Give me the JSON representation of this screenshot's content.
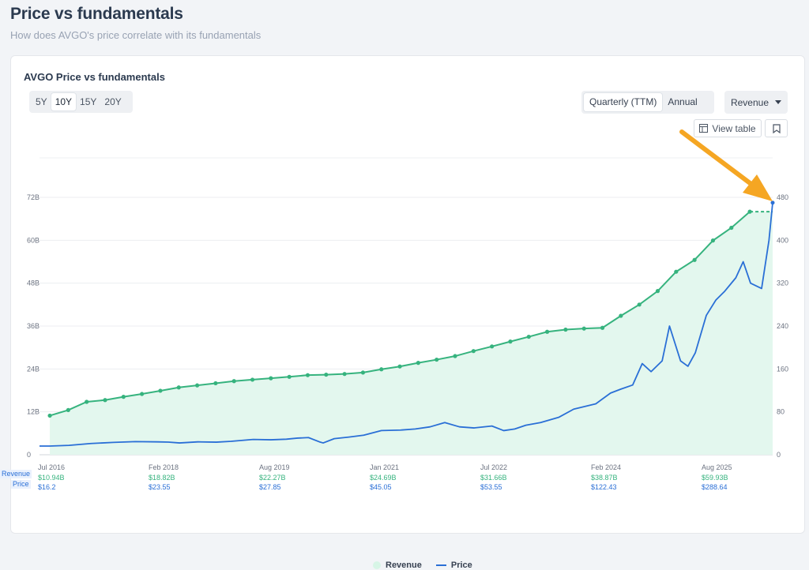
{
  "header": {
    "title": "Price vs fundamentals",
    "subtitle": "How does AVGO's price correlate with its fundamentals"
  },
  "card": {
    "title": "AVGO Price vs fundamentals",
    "ranges": [
      "5Y",
      "10Y",
      "15Y",
      "20Y"
    ],
    "active_range": "10Y",
    "periods": [
      "Quarterly (TTM)",
      "Annual"
    ],
    "active_period": "Quarterly (TTM)",
    "metric": "Revenue",
    "view_table_label": "View table"
  },
  "row_labels": {
    "revenue": "Revenue",
    "price": "Price"
  },
  "colors": {
    "revenue": "#36b37e",
    "revenue_fill": "#e3f7ee",
    "price": "#2a6fd6",
    "arrow": "#f5a623"
  },
  "icons": {
    "table": "table-icon",
    "bookmark": "bookmark-icon",
    "dropdown": "chevron-down-icon",
    "annotation": "arrow-annotation"
  },
  "chart_data": {
    "type": "line",
    "left_axis": {
      "ticks": [
        "0",
        "12B",
        "24B",
        "36B",
        "48B",
        "60B",
        "72B"
      ],
      "range": [
        0,
        72
      ]
    },
    "right_axis": {
      "ticks": [
        "0",
        "80",
        "160",
        "240",
        "320",
        "400",
        "480"
      ],
      "range": [
        0,
        480
      ]
    },
    "x_labels": [
      "Jul 2016",
      "Feb 2018",
      "Aug 2019",
      "Jan 2021",
      "Jul 2022",
      "Feb 2024",
      "Aug 2025"
    ],
    "x_label_values": {
      "revenue": [
        "$10.94B",
        "$18.82B",
        "$22.27B",
        "$24.69B",
        "$31.66B",
        "$38.87B",
        "$59.93B"
      ],
      "price": [
        "$16.2",
        "$23.55",
        "$27.85",
        "$45.05",
        "$53.55",
        "$122.43",
        "$288.64"
      ]
    },
    "x_range": [
      2016.4,
      2026.35
    ],
    "series": [
      {
        "name": "Revenue",
        "x": [
          2016.54,
          2016.79,
          2017.04,
          2017.29,
          2017.54,
          2017.79,
          2018.04,
          2018.29,
          2018.54,
          2018.79,
          2019.04,
          2019.29,
          2019.54,
          2019.79,
          2020.04,
          2020.29,
          2020.54,
          2020.79,
          2021.04,
          2021.29,
          2021.54,
          2021.79,
          2022.04,
          2022.29,
          2022.54,
          2022.79,
          2023.04,
          2023.29,
          2023.54,
          2023.79,
          2024.04,
          2024.29,
          2024.54,
          2024.79,
          2025.04,
          2025.29,
          2025.54,
          2025.79,
          2026.04
        ],
        "values": [
          10.94,
          12.5,
          14.8,
          15.3,
          16.2,
          17.0,
          17.9,
          18.82,
          19.4,
          20.0,
          20.6,
          21.0,
          21.4,
          21.8,
          22.27,
          22.4,
          22.6,
          23.0,
          23.9,
          24.69,
          25.7,
          26.6,
          27.6,
          29.0,
          30.3,
          31.66,
          33.0,
          34.4,
          35.0,
          35.3,
          35.5,
          38.87,
          42.0,
          45.8,
          51.2,
          54.5,
          59.93,
          63.5,
          68.0
        ],
        "projection": {
          "x": [
            2026.04,
            2026.35
          ],
          "values": [
            68.0,
            68.0
          ]
        }
      },
      {
        "name": "Price",
        "x": [
          2016.4,
          2016.54,
          2016.8,
          2017.1,
          2017.4,
          2017.7,
          2018.0,
          2018.15,
          2018.3,
          2018.55,
          2018.8,
          2019.0,
          2019.3,
          2019.54,
          2019.75,
          2019.9,
          2020.05,
          2020.2,
          2020.25,
          2020.4,
          2020.6,
          2020.8,
          2021.04,
          2021.3,
          2021.5,
          2021.7,
          2021.9,
          2022.1,
          2022.3,
          2022.54,
          2022.7,
          2022.85,
          2023.0,
          2023.2,
          2023.45,
          2023.65,
          2023.8,
          2023.95,
          2024.15,
          2024.29,
          2024.45,
          2024.58,
          2024.7,
          2024.85,
          2024.95,
          2025.1,
          2025.2,
          2025.3,
          2025.45,
          2025.58,
          2025.7,
          2025.85,
          2025.95,
          2026.05,
          2026.2,
          2026.3,
          2026.35
        ],
        "values": [
          16.2,
          16.2,
          17.5,
          21.0,
          23.0,
          24.5,
          24.0,
          23.55,
          22.0,
          24.0,
          23.5,
          25.0,
          28.5,
          27.85,
          29.0,
          31.0,
          32.0,
          24.0,
          22.0,
          30.0,
          33.0,
          36.5,
          45.05,
          46.0,
          48.0,
          52.0,
          60.0,
          52.0,
          50.0,
          53.55,
          45.0,
          48.0,
          55.0,
          60.0,
          70.0,
          85.0,
          90.0,
          95.0,
          115.0,
          122.43,
          130.0,
          170.0,
          155.0,
          175.0,
          240.0,
          175.0,
          165.0,
          190.0,
          260.0,
          288.64,
          305.0,
          330.0,
          360.0,
          320.0,
          310.0,
          400.0,
          470.0
        ]
      }
    ],
    "grid": true,
    "legend_position": "bottom-center"
  }
}
